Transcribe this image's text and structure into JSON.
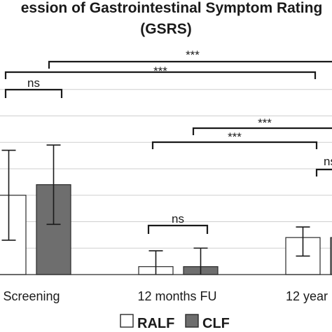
{
  "chart_data": {
    "type": "bar",
    "title_lines": [
      "ession of Gastrointestinal Symptom Rating",
      "(GSRS)"
    ],
    "categories": [
      "Screening",
      "12 months FU",
      "12 year"
    ],
    "ylim": [
      0,
      8
    ],
    "grid": true,
    "series": [
      {
        "name": "RALF",
        "color": "#ffffff",
        "values": [
          3.0,
          0.3,
          1.4
        ],
        "err_low": [
          1.3,
          0.0,
          0.7
        ],
        "err_high": [
          4.7,
          0.9,
          1.8
        ]
      },
      {
        "name": "CLF",
        "color": "#6e6e6e",
        "values": [
          3.4,
          0.3,
          1.4
        ],
        "err_low": [
          1.9,
          0.0,
          0.7
        ],
        "err_high": [
          4.9,
          1.0,
          1.8
        ]
      }
    ],
    "significance": [
      {
        "label": "***",
        "from": "Screening",
        "to": "12 year"
      },
      {
        "label": "***",
        "from": "Screening",
        "to": "12 year"
      },
      {
        "label": "ns",
        "from": "Screening",
        "to": "Screening"
      },
      {
        "label": "***",
        "from": "12 months FU",
        "to": "12 year"
      },
      {
        "label": "***",
        "from": "12 months FU",
        "to": "12 year"
      },
      {
        "label": "ns",
        "from": "12 months FU",
        "to": "12 months FU"
      },
      {
        "label": "ns",
        "from": "12 year",
        "to": "12 year"
      }
    ],
    "legend": {
      "placement": "bottom",
      "entries": [
        "RALF",
        "CLF"
      ]
    }
  }
}
